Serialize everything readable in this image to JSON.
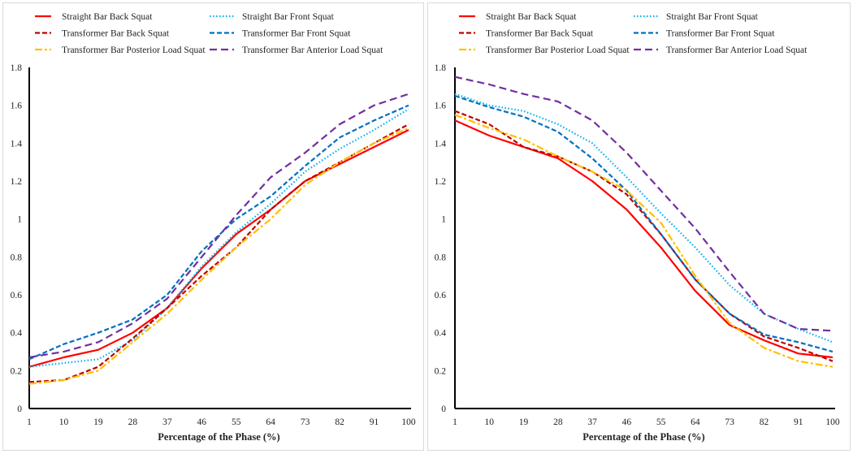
{
  "chart_data": [
    {
      "type": "line",
      "xlabel": "Percentage of the Phase (%)",
      "ylabel": "",
      "xlim": [
        1,
        100
      ],
      "ylim": [
        0,
        1.8
      ],
      "x_ticks": [
        "1",
        "10",
        "19",
        "28",
        "37",
        "46",
        "55",
        "64",
        "73",
        "82",
        "91",
        "100"
      ],
      "y_ticks": [
        "0",
        "0.2",
        "0.4",
        "0.6",
        "0.8",
        "1",
        "1.2",
        "1.4",
        "1.6",
        "1.8"
      ],
      "grid": false,
      "legend_position": "top",
      "x": [
        1,
        10,
        19,
        28,
        37,
        46,
        55,
        64,
        73,
        82,
        91,
        100
      ],
      "series": [
        {
          "name": "Straight Bar Back Squat",
          "color": "#FF0000",
          "style": "solid",
          "values": [
            0.22,
            0.27,
            0.31,
            0.4,
            0.53,
            0.74,
            0.92,
            1.05,
            1.2,
            1.29,
            1.38,
            1.47
          ]
        },
        {
          "name": "Straight Bar Front Squat",
          "color": "#00B0F0",
          "style": "dotted",
          "values": [
            0.22,
            0.24,
            0.26,
            0.36,
            0.53,
            0.75,
            0.93,
            1.08,
            1.25,
            1.37,
            1.47,
            1.58
          ]
        },
        {
          "name": "Transformer Bar Back Squat",
          "color": "#C00000",
          "style": "dashed",
          "values": [
            0.14,
            0.15,
            0.22,
            0.37,
            0.53,
            0.7,
            0.85,
            1.05,
            1.2,
            1.3,
            1.4,
            1.5
          ]
        },
        {
          "name": "Transformer Bar Front Squat",
          "color": "#0070C0",
          "style": "dashed",
          "values": [
            0.26,
            0.34,
            0.4,
            0.47,
            0.6,
            0.83,
            1.0,
            1.12,
            1.28,
            1.43,
            1.52,
            1.6
          ]
        },
        {
          "name": "Transformer Bar Posterior Load Squat",
          "color": "#FFC000",
          "style": "dashdot",
          "values": [
            0.13,
            0.15,
            0.2,
            0.35,
            0.5,
            0.68,
            0.85,
            1.0,
            1.18,
            1.3,
            1.4,
            1.48
          ]
        },
        {
          "name": "Transformer Bar Anterior Load Squat",
          "color": "#7030A0",
          "style": "longdash",
          "values": [
            0.27,
            0.3,
            0.35,
            0.45,
            0.58,
            0.8,
            1.02,
            1.22,
            1.35,
            1.5,
            1.6,
            1.66
          ]
        }
      ]
    },
    {
      "type": "line",
      "xlabel": "Percentage of the Phase (%)",
      "ylabel": "",
      "xlim": [
        1,
        100
      ],
      "ylim": [
        0,
        1.8
      ],
      "x_ticks": [
        "1",
        "10",
        "19",
        "28",
        "37",
        "46",
        "55",
        "64",
        "73",
        "82",
        "91",
        "100"
      ],
      "y_ticks": [
        "0",
        "0.2",
        "0.4",
        "0.6",
        "0.8",
        "1",
        "1.2",
        "1.4",
        "1.6",
        "1.8"
      ],
      "grid": false,
      "legend_position": "top",
      "x": [
        1,
        10,
        19,
        28,
        37,
        46,
        55,
        64,
        73,
        82,
        91,
        100
      ],
      "series": [
        {
          "name": "Straight Bar Back Squat",
          "color": "#FF0000",
          "style": "solid",
          "values": [
            1.52,
            1.44,
            1.38,
            1.32,
            1.2,
            1.05,
            0.85,
            0.62,
            0.44,
            0.36,
            0.29,
            0.27
          ]
        },
        {
          "name": "Straight Bar Front Squat",
          "color": "#00B0F0",
          "style": "dotted",
          "values": [
            1.66,
            1.6,
            1.57,
            1.5,
            1.4,
            1.22,
            1.03,
            0.85,
            0.65,
            0.5,
            0.42,
            0.35
          ]
        },
        {
          "name": "Transformer Bar Back Squat",
          "color": "#C00000",
          "style": "dashed",
          "values": [
            1.57,
            1.5,
            1.38,
            1.33,
            1.25,
            1.13,
            0.92,
            0.68,
            0.5,
            0.38,
            0.32,
            0.25
          ]
        },
        {
          "name": "Transformer Bar Front Squat",
          "color": "#0070C0",
          "style": "dashed",
          "values": [
            1.65,
            1.59,
            1.54,
            1.46,
            1.32,
            1.15,
            0.92,
            0.68,
            0.5,
            0.39,
            0.35,
            0.3
          ]
        },
        {
          "name": "Transformer Bar Posterior Load Squat",
          "color": "#FFC000",
          "style": "dashdot",
          "values": [
            1.55,
            1.48,
            1.42,
            1.33,
            1.25,
            1.15,
            0.98,
            0.7,
            0.45,
            0.32,
            0.25,
            0.22
          ]
        },
        {
          "name": "Transformer Bar Anterior Load Squat",
          "color": "#7030A0",
          "style": "longdash",
          "values": [
            1.75,
            1.71,
            1.66,
            1.62,
            1.52,
            1.35,
            1.15,
            0.95,
            0.72,
            0.5,
            0.42,
            0.41
          ]
        }
      ]
    }
  ]
}
